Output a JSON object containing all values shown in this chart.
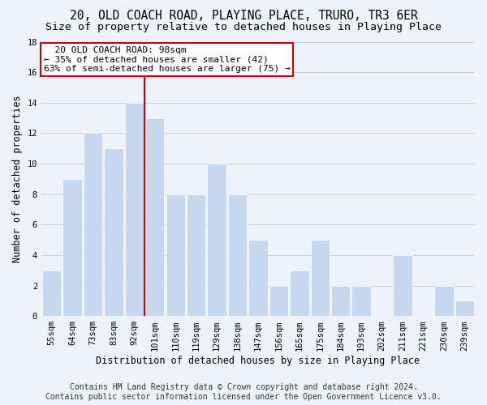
{
  "title": "20, OLD COACH ROAD, PLAYING PLACE, TRURO, TR3 6ER",
  "subtitle": "Size of property relative to detached houses in Playing Place",
  "xlabel": "Distribution of detached houses by size in Playing Place",
  "ylabel": "Number of detached properties",
  "footer_line1": "Contains HM Land Registry data © Crown copyright and database right 2024.",
  "footer_line2": "Contains public sector information licensed under the Open Government Licence v3.0.",
  "categories": [
    "55sqm",
    "64sqm",
    "73sqm",
    "83sqm",
    "92sqm",
    "101sqm",
    "110sqm",
    "119sqm",
    "129sqm",
    "138sqm",
    "147sqm",
    "156sqm",
    "165sqm",
    "175sqm",
    "184sqm",
    "193sqm",
    "202sqm",
    "211sqm",
    "221sqm",
    "230sqm",
    "239sqm"
  ],
  "values": [
    3,
    9,
    12,
    11,
    14,
    13,
    8,
    8,
    10,
    8,
    5,
    2,
    3,
    5,
    2,
    2,
    0,
    4,
    0,
    2,
    1
  ],
  "bar_color": "#c5d8f0",
  "bar_edge_color": "#ffffff",
  "vline_x": 4.5,
  "vline_color": "#cc0000",
  "annotation_line1": "  20 OLD COACH ROAD: 98sqm",
  "annotation_line2": "← 35% of detached houses are smaller (42)",
  "annotation_line3": "63% of semi-detached houses are larger (75) →",
  "annotation_box_color": "#cc0000",
  "annotation_box_fill": "#ffffff",
  "ylim": [
    0,
    18
  ],
  "yticks": [
    0,
    2,
    4,
    6,
    8,
    10,
    12,
    14,
    16,
    18
  ],
  "grid_color": "#cccccc",
  "bg_color": "#eef2fb",
  "title_fontsize": 10.5,
  "subtitle_fontsize": 9.5,
  "axis_label_fontsize": 8.5,
  "tick_fontsize": 7.5,
  "annotation_fontsize": 8,
  "footer_fontsize": 7
}
